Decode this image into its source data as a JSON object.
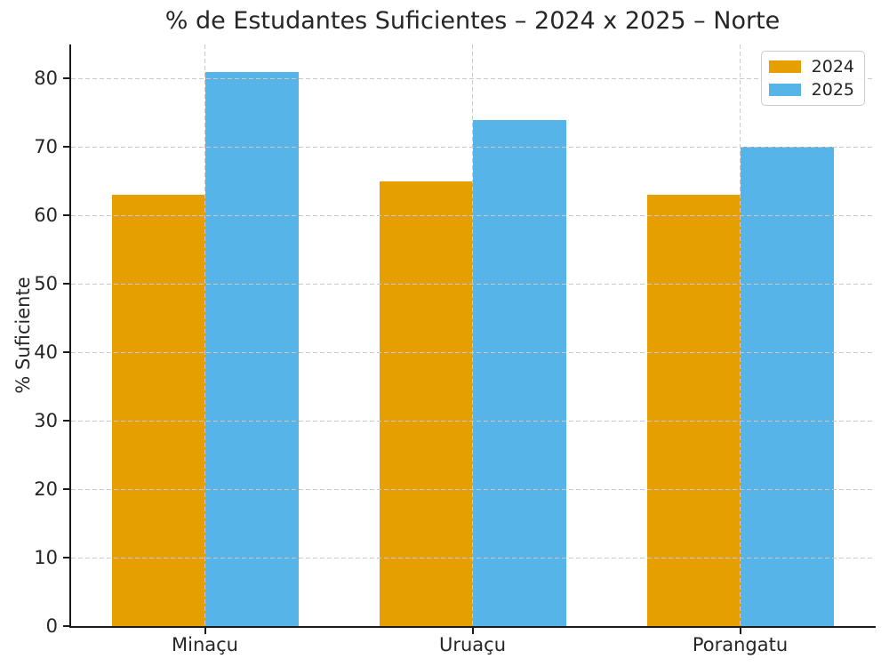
{
  "chart_data": {
    "type": "bar",
    "title": "% de Estudantes Suficientes – 2024 x 2025 – Norte",
    "ylabel": "% Suficiente",
    "xlabel": "",
    "categories": [
      "Minaçu",
      "Uruaçu",
      "Porangatu"
    ],
    "series": [
      {
        "name": "2024",
        "color": "#E69F00",
        "values": [
          63,
          65,
          63
        ]
      },
      {
        "name": "2025",
        "color": "#56B4E9",
        "values": [
          81,
          74,
          70
        ]
      }
    ],
    "ylim": [
      0,
      85
    ],
    "yticks": [
      0,
      10,
      20,
      30,
      40,
      50,
      60,
      70,
      80
    ],
    "grid": {
      "horizontal": true,
      "vertical": true,
      "style": "dashed",
      "color": "#c9c9c9",
      "drawn_above_bars": true
    },
    "legend": {
      "position": "upper right",
      "entries": [
        "2024",
        "2025"
      ]
    },
    "spine_color": "#1a1a1a",
    "background_color": "#ffffff"
  }
}
